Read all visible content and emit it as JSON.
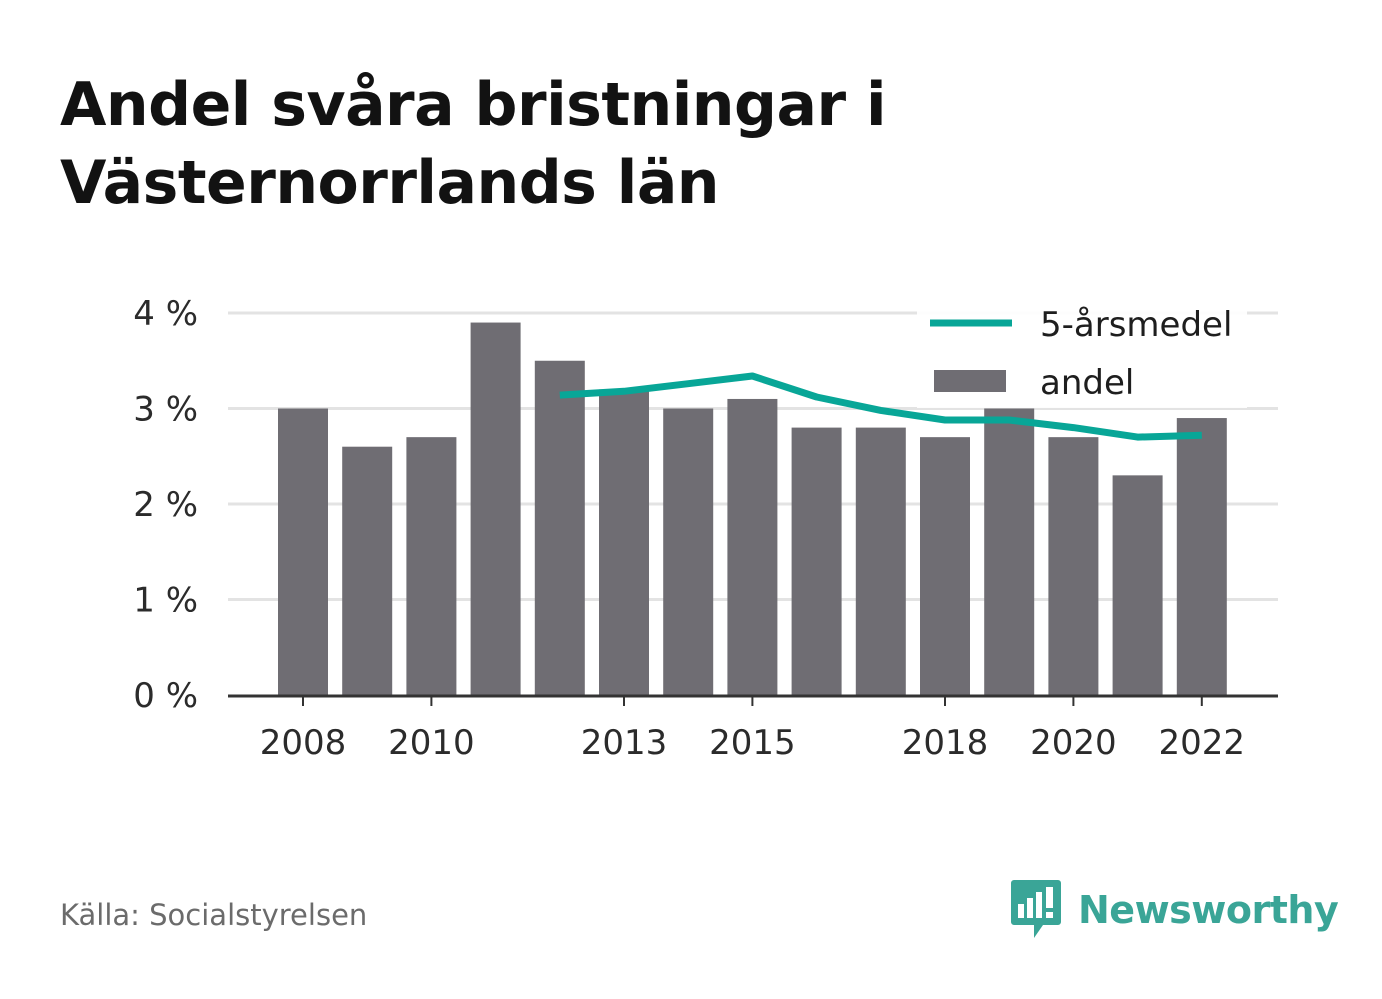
{
  "title": "Andel svåra bristningar i Västernorrlands län",
  "source": "Källa: Socialstyrelsen",
  "brand": {
    "name": "Newsworthy",
    "logo_icon": "newsworthy-logo-icon",
    "color": "#3aa597"
  },
  "colors": {
    "bar": "#6f6d73",
    "line": "#08a697",
    "grid": "#e3e3e3",
    "axis": "#333333"
  },
  "chart_data": {
    "type": "bar",
    "title": "Andel svåra bristningar i Västernorrlands län",
    "xlabel": "",
    "ylabel": "",
    "categories": [
      "2008",
      "2009",
      "2010",
      "2011",
      "2012",
      "2013",
      "2014",
      "2015",
      "2016",
      "2017",
      "2018",
      "2019",
      "2020",
      "2021",
      "2022"
    ],
    "x_tick_labels": [
      "2008",
      "2010",
      "2013",
      "2015",
      "2018",
      "2020",
      "2022"
    ],
    "y_ticks": [
      0,
      1,
      2,
      3,
      4
    ],
    "y_tick_labels": [
      "0 %",
      "1 %",
      "2 %",
      "3 %",
      "4 %"
    ],
    "ylim": [
      0,
      4
    ],
    "grid": true,
    "legend_position": "top-right",
    "series": [
      {
        "name": "andel",
        "type": "bar",
        "values": [
          3.0,
          2.6,
          2.7,
          3.9,
          3.5,
          3.2,
          3.0,
          3.1,
          2.8,
          2.8,
          2.7,
          3.0,
          2.7,
          2.3,
          2.9
        ]
      },
      {
        "name": "5-årsmedel",
        "type": "line",
        "values": [
          null,
          null,
          null,
          null,
          3.14,
          3.18,
          3.26,
          3.34,
          3.12,
          2.98,
          2.88,
          2.88,
          2.8,
          2.7,
          2.72
        ]
      }
    ]
  }
}
